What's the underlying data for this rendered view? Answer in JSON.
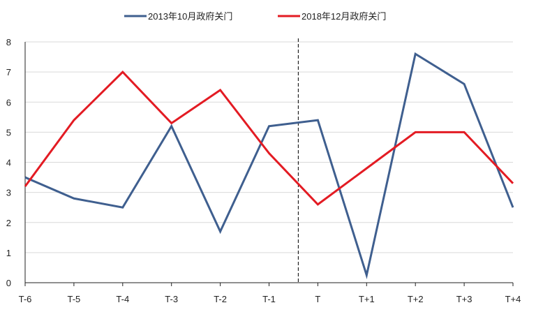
{
  "chart_data": {
    "type": "line",
    "categories": [
      "T-6",
      "T-5",
      "T-4",
      "T-3",
      "T-2",
      "T-1",
      "T",
      "T+1",
      "T+2",
      "T+3",
      "T+4"
    ],
    "series": [
      {
        "name": "2013年10月政府关门",
        "color": "#3f5f8f",
        "values": [
          3.5,
          2.8,
          2.5,
          5.2,
          1.7,
          5.2,
          5.4,
          0.25,
          7.6,
          6.6,
          2.5
        ]
      },
      {
        "name": "2018年12月政府关门",
        "color": "#e31b23",
        "values": [
          3.2,
          5.4,
          7.0,
          5.3,
          6.4,
          4.3,
          2.6,
          3.8,
          5.0,
          5.0,
          3.3
        ]
      }
    ],
    "yticks": [
      "0",
      "1",
      "2",
      "3",
      "4",
      "5",
      "6",
      "7",
      "8"
    ],
    "ylim": [
      0,
      8
    ],
    "grid": true,
    "legend": "top",
    "event_marker": "dashed vertical line between T-1 and T"
  }
}
